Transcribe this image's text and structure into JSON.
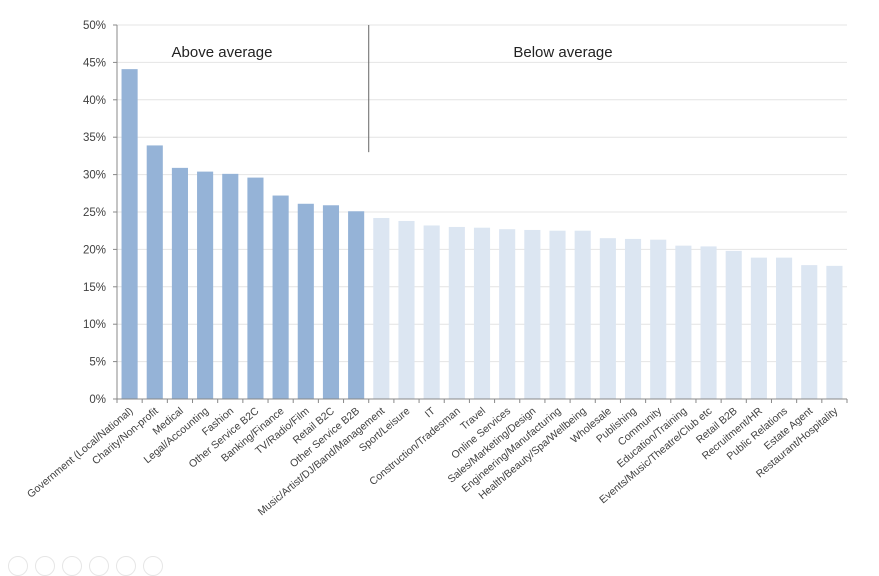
{
  "chart_data": {
    "type": "bar",
    "ylim": [
      0,
      50
    ],
    "yticks": [
      "0%",
      "5%",
      "10%",
      "15%",
      "20%",
      "25%",
      "30%",
      "35%",
      "40%",
      "45%",
      "50%"
    ],
    "grid": true,
    "annotations": [
      "Above average",
      "Below average"
    ],
    "colors": {
      "above": "#95b3d7",
      "below": "#dce6f2"
    },
    "categories": [
      "Government (Local/National)",
      "Charity/Non-profit",
      "Medical",
      "Legal/Accounting",
      "Fashion",
      "Other Service B2C",
      "Banking/Finance",
      "TV/Radio/Film",
      "Retail B2C",
      "Other Service B2B",
      "Music/Artist/DJ/Band/Management",
      "Sport/Leisure",
      "IT",
      "Construction/Tradesman",
      "Travel",
      "Online Services",
      "Sales/Marketing/Design",
      "Engineering/Manufacturing",
      "Health/Beauty/Spa/Wellbeing",
      "Wholesale",
      "Publishing",
      "Community",
      "Education/Training",
      "Events/Music/Theatre/Club etc",
      "Retail B2B",
      "Recruitment/HR",
      "Public Relations",
      "Estate Agent",
      "Restaurant/Hospitality"
    ],
    "values": [
      44.1,
      33.9,
      30.9,
      30.4,
      30.1,
      29.6,
      27.2,
      26.1,
      25.9,
      25.1,
      24.2,
      23.8,
      23.2,
      23.0,
      22.9,
      22.7,
      22.6,
      22.5,
      22.5,
      21.5,
      21.4,
      21.3,
      20.5,
      20.4,
      19.8,
      18.9,
      18.9,
      17.9,
      17.8
    ],
    "above_count": 10
  }
}
